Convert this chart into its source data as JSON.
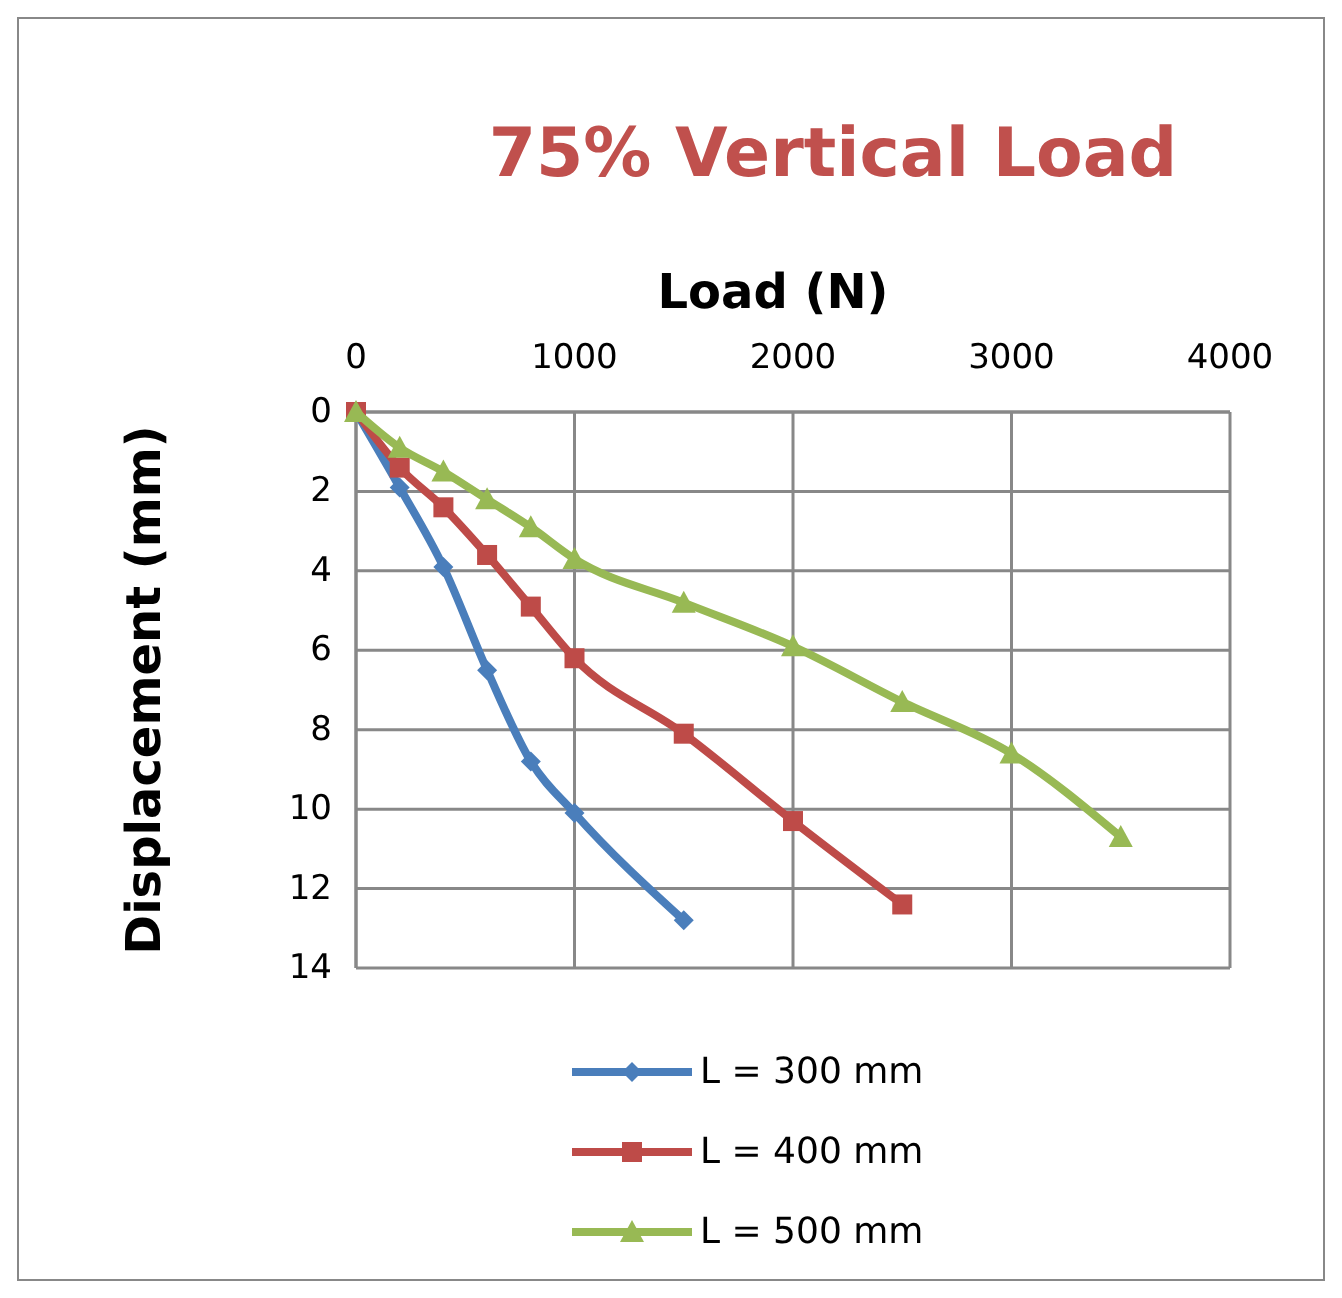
{
  "chart_data": {
    "type": "line",
    "title": "75% Vertical Load",
    "xlabel": "Load (N)",
    "ylabel": "Displacement (mm)",
    "xlim": [
      0,
      4000
    ],
    "xticks": [
      0,
      1000,
      2000,
      3000,
      4000
    ],
    "ylim": [
      14,
      0
    ],
    "yticks": [
      0,
      2,
      4,
      6,
      8,
      10,
      12,
      14
    ],
    "grid": true,
    "legend": "bottom",
    "series": [
      {
        "name": "L = 300 mm",
        "color": "#4a7ebb",
        "marker": "diamond",
        "x": [
          0,
          200,
          400,
          600,
          800,
          1000,
          1500
        ],
        "values": [
          0,
          1.9,
          3.9,
          6.5,
          8.8,
          10.1,
          12.8
        ]
      },
      {
        "name": "L = 400 mm",
        "color": "#be4b48",
        "marker": "square",
        "x": [
          0,
          200,
          400,
          600,
          800,
          1000,
          1500,
          2000,
          2500
        ],
        "values": [
          0,
          1.4,
          2.4,
          3.6,
          4.9,
          6.2,
          8.1,
          10.3,
          12.4
        ]
      },
      {
        "name": "L = 500 mm",
        "color": "#98b954",
        "marker": "triangle",
        "x": [
          0,
          200,
          400,
          600,
          800,
          1000,
          1500,
          2000,
          2500,
          3000,
          3500
        ],
        "values": [
          0,
          0.9,
          1.5,
          2.2,
          2.9,
          3.7,
          4.8,
          5.9,
          7.3,
          8.6,
          10.7
        ]
      }
    ]
  }
}
